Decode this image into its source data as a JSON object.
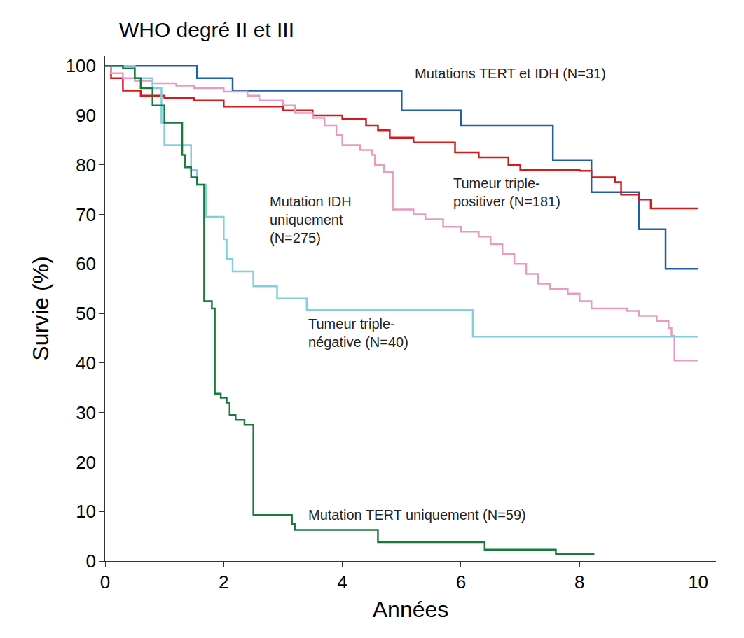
{
  "chart_data": {
    "type": "line",
    "title": "WHO degré II et III",
    "x_label": "Années",
    "y_label": "Survie (%)",
    "line_style": "step",
    "xlim": [
      0,
      10.3
    ],
    "xticks": [
      0,
      2,
      4,
      6,
      8,
      10
    ],
    "ylim": [
      0,
      102
    ],
    "yticks": [
      0,
      10,
      20,
      30,
      40,
      50,
      60,
      70,
      80,
      90,
      100
    ],
    "grid": false,
    "series": [
      {
        "name": "Mutations TERT et IDH (N=31)",
        "color": "#1f5fa5",
        "x": [
          0,
          1.55,
          2.15,
          5.0,
          6.0,
          7.55,
          8.2,
          9.0,
          9.45,
          10
        ],
        "values": [
          100,
          97.5,
          95,
          91,
          88,
          81,
          74.5,
          67,
          59,
          59
        ]
      },
      {
        "name": "Tumeur triple-\npositiver (N=181)",
        "color": "#d7191c",
        "x": [
          0,
          0.1,
          0.3,
          0.6,
          1.0,
          1.5,
          2.0,
          3.0,
          3.5,
          4.0,
          4.4,
          4.6,
          4.8,
          5.2,
          5.9,
          6.3,
          6.8,
          7.0,
          8.0,
          8.2,
          8.6,
          8.7,
          9.0,
          9.2,
          10
        ],
        "values": [
          100,
          97.5,
          95,
          94,
          93.5,
          93,
          91.8,
          91,
          90,
          89.3,
          88,
          87,
          85.5,
          84.5,
          82.5,
          81.5,
          80,
          79,
          78.8,
          77.5,
          76.5,
          74,
          73,
          71.2,
          71.2
        ]
      },
      {
        "name": "Mutation IDH\nuniquement\n(N=275)",
        "color": "#e89ac0",
        "x": [
          0,
          0.1,
          0.3,
          0.5,
          0.8,
          1.2,
          1.5,
          2.0,
          2.4,
          2.6,
          3.0,
          3.2,
          3.5,
          3.7,
          3.9,
          4.0,
          4.3,
          4.5,
          4.55,
          4.7,
          4.85,
          5.2,
          5.4,
          5.7,
          6.0,
          6.3,
          6.5,
          6.7,
          6.9,
          7.1,
          7.3,
          7.5,
          7.8,
          8.0,
          8.2,
          8.8,
          9.0,
          9.3,
          9.5,
          9.55,
          9.6,
          10
        ],
        "values": [
          100,
          98.5,
          97.5,
          97,
          96.5,
          96,
          95.5,
          94.8,
          94,
          93,
          92,
          90.5,
          89.5,
          88,
          86,
          84,
          83,
          82,
          80,
          78.5,
          71,
          70,
          69,
          67.5,
          66.5,
          65.5,
          64,
          62,
          60,
          58,
          56,
          55,
          54,
          52.5,
          51,
          50.5,
          49.5,
          48.5,
          47,
          45.5,
          40.5,
          40.5
        ]
      },
      {
        "name": "Tumeur triple-\nnégative (N=40)",
        "color": "#7fcfe0",
        "x": [
          0,
          0.5,
          0.8,
          0.95,
          1.0,
          1.45,
          1.55,
          1.7,
          2.0,
          2.05,
          2.15,
          2.5,
          2.9,
          3.4,
          6.2,
          10
        ],
        "values": [
          100,
          97.5,
          95.5,
          88.5,
          84,
          79,
          76,
          69.5,
          65,
          61,
          58.5,
          55.5,
          53,
          50.7,
          45.3,
          45.3
        ]
      },
      {
        "name": "Mutation TERT uniquement (N=59)",
        "color": "#1a7a3c",
        "x": [
          0,
          0.3,
          0.5,
          0.6,
          0.8,
          1.0,
          1.3,
          1.35,
          1.45,
          1.55,
          1.67,
          1.8,
          1.85,
          1.95,
          2.05,
          2.1,
          2.2,
          2.35,
          2.5,
          3.15,
          3.2,
          4.6,
          6.4,
          7.6,
          8.25
        ],
        "values": [
          100,
          99.5,
          97.5,
          95.5,
          92,
          88.5,
          82,
          79.5,
          77.5,
          76,
          52.5,
          51,
          33.8,
          33,
          32,
          29.5,
          28.5,
          27.5,
          9.3,
          7.5,
          6.3,
          3.8,
          2.3,
          1.4,
          1.4
        ]
      }
    ]
  }
}
